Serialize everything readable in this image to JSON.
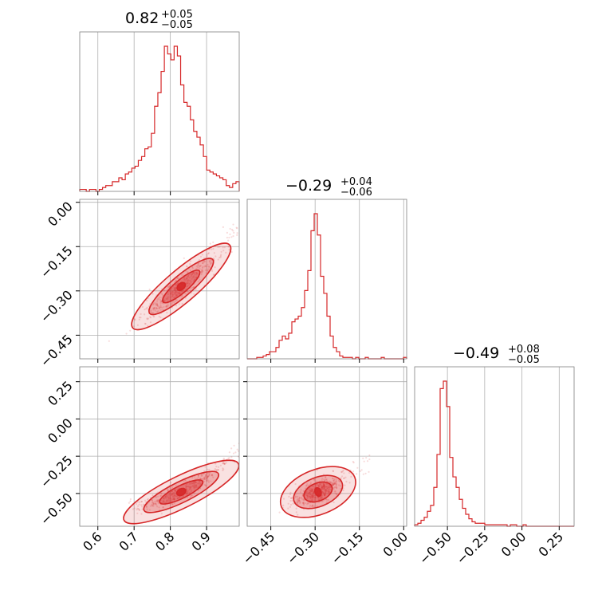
{
  "chart_data": {
    "type": "corner",
    "color": "#d62728",
    "parameters": [
      {
        "range": [
          0.55,
          0.99
        ],
        "ticks": [
          0.6,
          0.7,
          0.8,
          0.9
        ],
        "tick_labels": [
          "0.6",
          "0.7",
          "0.8",
          "0.9"
        ],
        "title": {
          "value": "0.82",
          "plus": "+0.05",
          "minus": "−0.05"
        },
        "hist": [
          1,
          1,
          0,
          1,
          1,
          0,
          1,
          2,
          3,
          3,
          5,
          5,
          7,
          6,
          9,
          10,
          12,
          13,
          16,
          18,
          22,
          23,
          30,
          44,
          51,
          62,
          75,
          71,
          68,
          75,
          70,
          55,
          46,
          44,
          37,
          31,
          28,
          24,
          18,
          11,
          10,
          9,
          8,
          7,
          6,
          3,
          2,
          4,
          5
        ]
      },
      {
        "range": [
          -0.53,
          0.01
        ],
        "ticks": [
          -0.45,
          -0.3,
          -0.15,
          0.0
        ],
        "tick_labels": [
          "−0.45",
          "−0.30",
          "−0.15",
          "0.00"
        ],
        "title": {
          "value": "−0.29",
          "plus": "+0.04",
          "minus": "−0.06"
        },
        "hist": [
          0,
          0,
          0,
          1,
          1,
          2,
          3,
          5,
          5,
          8,
          13,
          16,
          14,
          18,
          26,
          28,
          30,
          36,
          48,
          62,
          90,
          102,
          87,
          58,
          46,
          30,
          16,
          8,
          5,
          2,
          1,
          1,
          1,
          0,
          1,
          0,
          0,
          1,
          0,
          0,
          0,
          0,
          1,
          0,
          0,
          0,
          0,
          0,
          0,
          1
        ]
      },
      {
        "range": [
          -0.72,
          0.35
        ],
        "ticks": [
          -0.5,
          -0.25,
          0.0,
          0.25
        ],
        "tick_labels": [
          "−0.50",
          "−0.25",
          "0.00",
          "0.25"
        ],
        "title": {
          "value": "−0.49",
          "plus": "+0.08",
          "minus": "−0.05"
        },
        "hist": [
          1,
          2,
          4,
          6,
          10,
          14,
          26,
          48,
          92,
          97,
          80,
          46,
          33,
          26,
          18,
          12,
          8,
          5,
          3,
          2,
          2,
          2,
          1,
          1,
          1,
          1,
          1,
          1,
          1,
          0,
          1,
          1,
          0,
          0,
          1,
          0,
          0,
          0,
          0,
          0,
          0,
          0,
          0,
          0,
          0,
          0,
          0,
          0,
          0,
          0
        ]
      }
    ],
    "pairs": [
      {
        "x_param": 0,
        "y_param": 1,
        "center": [
          0.83,
          -0.285
        ],
        "slope": 1.05,
        "x_spread": 0.055,
        "y_scatter": 0.025
      },
      {
        "x_param": 0,
        "y_param": 2,
        "center": [
          0.83,
          -0.49
        ],
        "slope": 1.2,
        "x_spread": 0.06,
        "y_scatter": 0.03
      },
      {
        "x_param": 1,
        "y_param": 2,
        "center": [
          -0.29,
          -0.49
        ],
        "slope": 0.8,
        "x_spread": 0.045,
        "y_scatter": 0.04
      }
    ]
  }
}
